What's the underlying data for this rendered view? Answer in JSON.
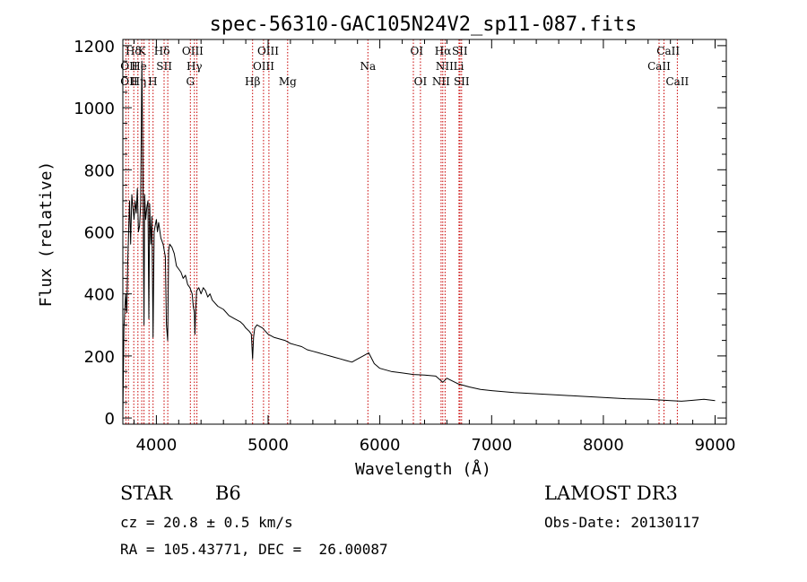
{
  "chart_data": {
    "type": "line",
    "title": "spec-56310-GAC105N24V2_sp11-087.fits",
    "xlabel": "Wavelength (Å)",
    "ylabel": "Flux (relative)",
    "xlim": [
      3700,
      9100
    ],
    "ylim": [
      -20,
      1220
    ],
    "x_ticks": [
      4000,
      5000,
      6000,
      7000,
      8000,
      9000
    ],
    "y_ticks": [
      0,
      200,
      400,
      600,
      800,
      1000,
      1200
    ],
    "grid": false,
    "series": [
      {
        "name": "flux",
        "x": [
          3700,
          3710,
          3725,
          3735,
          3745,
          3760,
          3770,
          3780,
          3790,
          3800,
          3810,
          3820,
          3830,
          3840,
          3850,
          3860,
          3870,
          3880,
          3889,
          3895,
          3905,
          3915,
          3925,
          3933,
          3940,
          3950,
          3960,
          3970,
          3980,
          3990,
          4000,
          4010,
          4020,
          4040,
          4060,
          4080,
          4090,
          4101,
          4110,
          4120,
          4140,
          4160,
          4180,
          4200,
          4220,
          4240,
          4260,
          4280,
          4300,
          4320,
          4330,
          4340,
          4345,
          4350,
          4360,
          4380,
          4400,
          4420,
          4440,
          4460,
          4480,
          4500,
          4550,
          4600,
          4650,
          4700,
          4750,
          4780,
          4800,
          4830,
          4850,
          4861,
          4870,
          4880,
          4900,
          4950,
          5000,
          5050,
          5100,
          5150,
          5200,
          5250,
          5300,
          5350,
          5400,
          5450,
          5500,
          5550,
          5600,
          5650,
          5700,
          5750,
          5800,
          5850,
          5900,
          5950,
          6000,
          6100,
          6200,
          6300,
          6400,
          6500,
          6563,
          6600,
          6700,
          6800,
          6900,
          7000,
          7200,
          7400,
          7600,
          7800,
          8000,
          8200,
          8400,
          8500,
          8600,
          8700,
          8800,
          8900,
          9000
        ],
        "values": [
          0,
          290,
          400,
          340,
          520,
          700,
          560,
          720,
          680,
          640,
          700,
          660,
          740,
          600,
          620,
          690,
          1150,
          800,
          300,
          720,
          640,
          680,
          700,
          320,
          690,
          560,
          650,
          260,
          600,
          620,
          640,
          600,
          630,
          580,
          560,
          520,
          300,
          250,
          540,
          560,
          550,
          530,
          490,
          480,
          470,
          450,
          460,
          430,
          420,
          400,
          360,
          340,
          270,
          330,
          410,
          420,
          400,
          420,
          410,
          390,
          400,
          380,
          360,
          350,
          330,
          320,
          310,
          300,
          290,
          280,
          270,
          190,
          260,
          290,
          300,
          290,
          270,
          260,
          255,
          250,
          240,
          235,
          230,
          220,
          215,
          210,
          205,
          200,
          195,
          190,
          185,
          180,
          190,
          200,
          210,
          175,
          160,
          150,
          145,
          140,
          138,
          135,
          115,
          128,
          110,
          100,
          92,
          88,
          82,
          78,
          74,
          70,
          66,
          62,
          60,
          58,
          56,
          54,
          57,
          60,
          56
        ]
      }
    ],
    "line_labels": [
      {
        "text": "Hδ",
        "x": 3795,
        "row": 1
      },
      {
        "text": "K",
        "x": 3870,
        "row": 1
      },
      {
        "text": "Hδ",
        "x": 4050,
        "row": 1
      },
      {
        "text": "OIII",
        "x": 4325,
        "row": 1
      },
      {
        "text": "OIII",
        "x": 5000,
        "row": 1
      },
      {
        "text": "OI",
        "x": 6330,
        "row": 1
      },
      {
        "text": "Hα",
        "x": 6565,
        "row": 1
      },
      {
        "text": "SII",
        "x": 6715,
        "row": 1
      },
      {
        "text": "CaII",
        "x": 8580,
        "row": 1
      },
      {
        "text": "OII",
        "x": 3755,
        "row": 2
      },
      {
        "text": "He",
        "x": 3845,
        "row": 2
      },
      {
        "text": "SII",
        "x": 4070,
        "row": 2
      },
      {
        "text": "Hγ",
        "x": 4340,
        "row": 2
      },
      {
        "text": "OIII",
        "x": 4960,
        "row": 2
      },
      {
        "text": "Na",
        "x": 5893,
        "row": 2
      },
      {
        "text": "NII",
        "x": 6580,
        "row": 2
      },
      {
        "text": "Li",
        "x": 6705,
        "row": 2
      },
      {
        "text": "CaII",
        "x": 8498,
        "row": 2
      },
      {
        "text": "OII",
        "x": 3755,
        "row": 3
      },
      {
        "text": "Hη",
        "x": 3840,
        "row": 3
      },
      {
        "text": "H",
        "x": 3968,
        "row": 3
      },
      {
        "text": "G",
        "x": 4304,
        "row": 3
      },
      {
        "text": "Hβ",
        "x": 4861,
        "row": 3
      },
      {
        "text": "Mg",
        "x": 5175,
        "row": 3
      },
      {
        "text": "OI",
        "x": 6363,
        "row": 3
      },
      {
        "text": "NII",
        "x": 6548,
        "row": 3
      },
      {
        "text": "SII",
        "x": 6731,
        "row": 3
      },
      {
        "text": "CaII",
        "x": 8662,
        "row": 3
      }
    ],
    "line_markers": [
      3727,
      3750,
      3798,
      3835,
      3869,
      3889,
      3934,
      3970,
      4069,
      4102,
      4304,
      4340,
      4363,
      4861,
      4959,
      5007,
      5175,
      5893,
      6300,
      6363,
      6548,
      6563,
      6584,
      6708,
      6717,
      6731,
      8498,
      8542,
      8662
    ]
  },
  "info": {
    "class_label": "STAR",
    "subclass": "B6",
    "survey": "LAMOST DR3",
    "cz": "cz = 20.8 ± 0.5 km/s",
    "obs_date": "Obs-Date: 20130117",
    "radec": "RA = 105.43771, DEC =  26.00087"
  },
  "colors": {
    "line": "#000000",
    "marker": "#c80000",
    "text": "#000000",
    "background": "#ffffff"
  }
}
